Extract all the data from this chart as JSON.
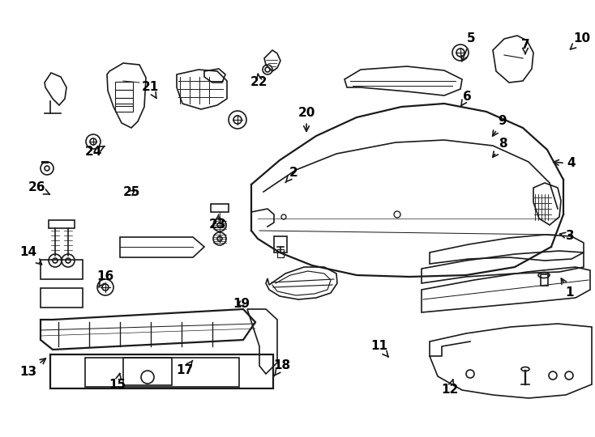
{
  "bg_color": "#ffffff",
  "line_color": "#1a1a1a",
  "label_color": "#000000",
  "lw": 1.2,
  "labels": [
    [
      "1",
      703,
      362,
      690,
      340
    ],
    [
      "2",
      362,
      214,
      350,
      228
    ],
    [
      "3",
      703,
      292,
      686,
      288
    ],
    [
      "4",
      705,
      202,
      678,
      200
    ],
    [
      "5",
      581,
      48,
      568,
      80
    ],
    [
      "6",
      576,
      120,
      568,
      132
    ],
    [
      "7",
      648,
      56,
      648,
      68
    ],
    [
      "8",
      620,
      178,
      605,
      198
    ],
    [
      "9",
      620,
      150,
      605,
      172
    ],
    [
      "10",
      718,
      48,
      700,
      64
    ],
    [
      "11",
      468,
      428,
      480,
      442
    ],
    [
      "12",
      555,
      482,
      560,
      465
    ],
    [
      "13",
      35,
      460,
      60,
      440
    ],
    [
      "14",
      35,
      312,
      55,
      330
    ],
    [
      "15",
      145,
      475,
      148,
      460
    ],
    [
      "16",
      130,
      342,
      120,
      358
    ],
    [
      "17",
      228,
      458,
      238,
      445
    ],
    [
      "18",
      348,
      452,
      338,
      465
    ],
    [
      "19",
      298,
      375,
      290,
      382
    ],
    [
      "20",
      378,
      140,
      378,
      167
    ],
    [
      "21",
      185,
      108,
      195,
      125
    ],
    [
      "22",
      320,
      102,
      318,
      90
    ],
    [
      "23",
      268,
      278,
      270,
      262
    ],
    [
      "24",
      115,
      188,
      130,
      180
    ],
    [
      "25",
      162,
      238,
      170,
      232
    ],
    [
      "26",
      45,
      232,
      65,
      242
    ]
  ]
}
